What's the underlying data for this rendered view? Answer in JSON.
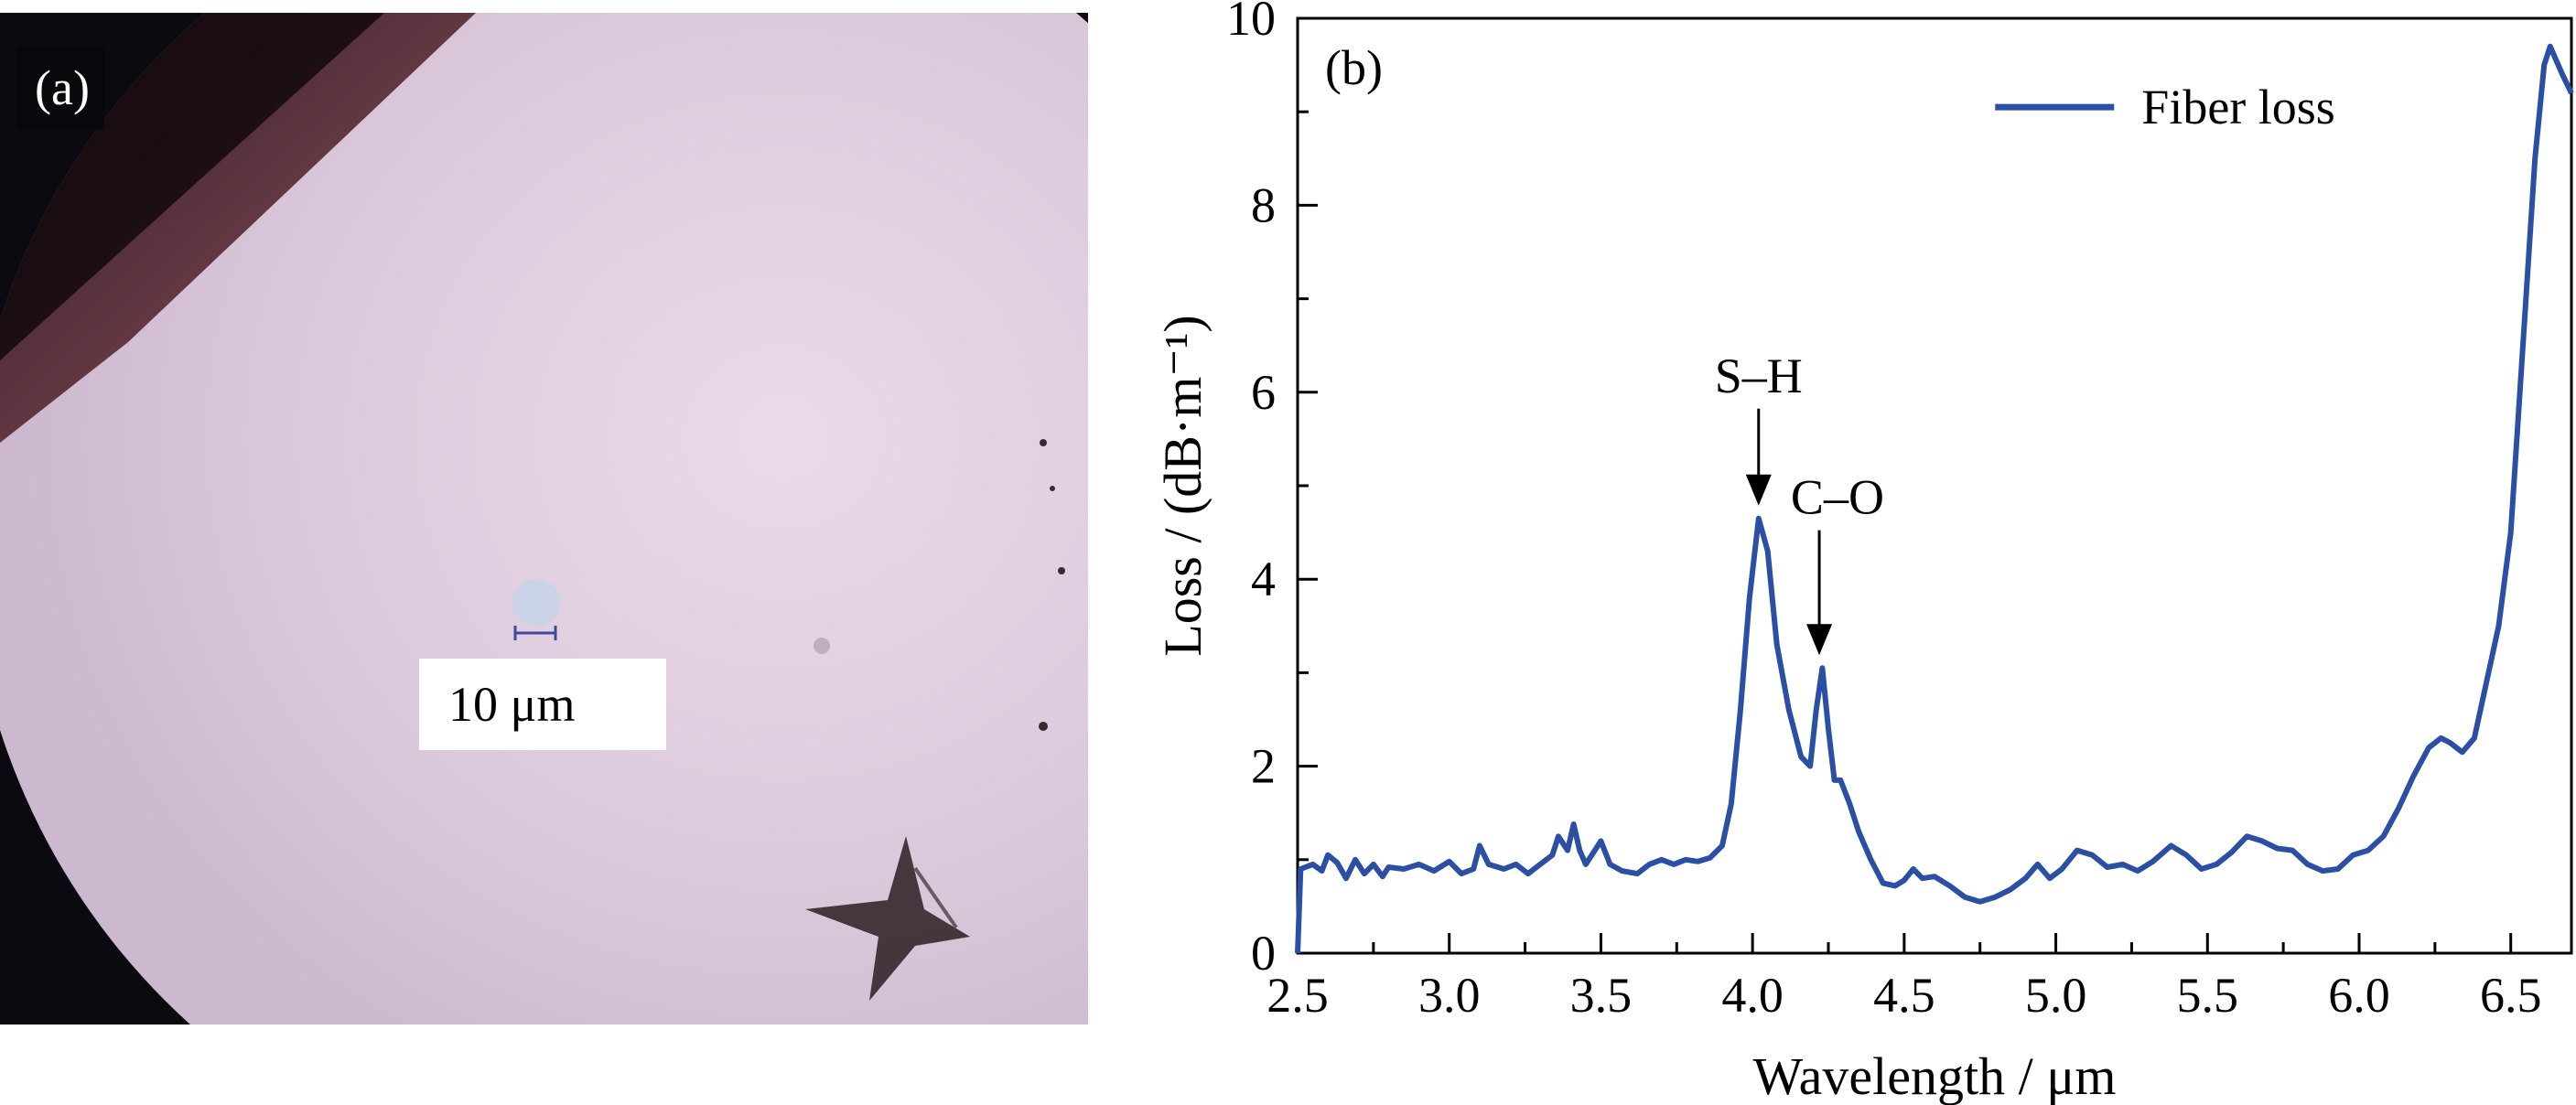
{
  "panel_a": {
    "label": "(a)",
    "scale_bar_text": "10 μm",
    "colors": {
      "field": "#d9c6d9",
      "shadow": "#0b0a10",
      "scale_bar": "#3b4a9a"
    }
  },
  "chart_data": {
    "type": "line",
    "panel_label": "(b)",
    "xlabel": "Wavelength / μm",
    "ylabel": "Loss / (dB·m⁻¹)",
    "xlim": [
      2.5,
      6.7
    ],
    "ylim": [
      0,
      10
    ],
    "xticks": [
      "2.5",
      "3.0",
      "3.5",
      "4.0",
      "4.5",
      "5.0",
      "5.5",
      "6.0",
      "6.5"
    ],
    "yticks": [
      "0",
      "2",
      "4",
      "6",
      "8",
      "10"
    ],
    "legend_position": "top-center",
    "grid": false,
    "series": [
      {
        "name": "Fiber loss",
        "color": "#2a4fa3",
        "points": [
          [
            2.5,
            0.0
          ],
          [
            2.51,
            0.9
          ],
          [
            2.55,
            0.95
          ],
          [
            2.58,
            0.88
          ],
          [
            2.6,
            1.05
          ],
          [
            2.63,
            0.97
          ],
          [
            2.66,
            0.8
          ],
          [
            2.69,
            1.0
          ],
          [
            2.72,
            0.85
          ],
          [
            2.75,
            0.95
          ],
          [
            2.78,
            0.82
          ],
          [
            2.8,
            0.92
          ],
          [
            2.85,
            0.9
          ],
          [
            2.9,
            0.95
          ],
          [
            2.95,
            0.88
          ],
          [
            3.0,
            0.98
          ],
          [
            3.04,
            0.85
          ],
          [
            3.08,
            0.9
          ],
          [
            3.1,
            1.15
          ],
          [
            3.13,
            0.95
          ],
          [
            3.18,
            0.9
          ],
          [
            3.22,
            0.95
          ],
          [
            3.26,
            0.85
          ],
          [
            3.3,
            0.95
          ],
          [
            3.34,
            1.05
          ],
          [
            3.36,
            1.25
          ],
          [
            3.39,
            1.1
          ],
          [
            3.41,
            1.38
          ],
          [
            3.43,
            1.1
          ],
          [
            3.45,
            0.95
          ],
          [
            3.48,
            1.1
          ],
          [
            3.5,
            1.2
          ],
          [
            3.53,
            0.95
          ],
          [
            3.57,
            0.88
          ],
          [
            3.62,
            0.85
          ],
          [
            3.66,
            0.95
          ],
          [
            3.7,
            1.0
          ],
          [
            3.74,
            0.95
          ],
          [
            3.78,
            1.0
          ],
          [
            3.82,
            0.98
          ],
          [
            3.86,
            1.02
          ],
          [
            3.9,
            1.15
          ],
          [
            3.93,
            1.6
          ],
          [
            3.96,
            2.6
          ],
          [
            3.99,
            3.8
          ],
          [
            4.02,
            4.65
          ],
          [
            4.05,
            4.3
          ],
          [
            4.08,
            3.3
          ],
          [
            4.12,
            2.6
          ],
          [
            4.16,
            2.1
          ],
          [
            4.19,
            2.0
          ],
          [
            4.21,
            2.6
          ],
          [
            4.23,
            3.05
          ],
          [
            4.25,
            2.4
          ],
          [
            4.27,
            1.85
          ],
          [
            4.29,
            1.85
          ],
          [
            4.32,
            1.6
          ],
          [
            4.35,
            1.3
          ],
          [
            4.39,
            1.0
          ],
          [
            4.43,
            0.75
          ],
          [
            4.47,
            0.72
          ],
          [
            4.5,
            0.78
          ],
          [
            4.53,
            0.9
          ],
          [
            4.56,
            0.8
          ],
          [
            4.6,
            0.82
          ],
          [
            4.65,
            0.72
          ],
          [
            4.7,
            0.6
          ],
          [
            4.75,
            0.55
          ],
          [
            4.8,
            0.6
          ],
          [
            4.85,
            0.68
          ],
          [
            4.9,
            0.8
          ],
          [
            4.94,
            0.95
          ],
          [
            4.98,
            0.8
          ],
          [
            5.02,
            0.9
          ],
          [
            5.07,
            1.1
          ],
          [
            5.12,
            1.05
          ],
          [
            5.17,
            0.92
          ],
          [
            5.22,
            0.95
          ],
          [
            5.27,
            0.88
          ],
          [
            5.32,
            0.98
          ],
          [
            5.38,
            1.15
          ],
          [
            5.43,
            1.05
          ],
          [
            5.48,
            0.9
          ],
          [
            5.53,
            0.95
          ],
          [
            5.58,
            1.08
          ],
          [
            5.63,
            1.25
          ],
          [
            5.68,
            1.2
          ],
          [
            5.73,
            1.12
          ],
          [
            5.78,
            1.1
          ],
          [
            5.83,
            0.95
          ],
          [
            5.88,
            0.88
          ],
          [
            5.93,
            0.9
          ],
          [
            5.98,
            1.05
          ],
          [
            6.03,
            1.1
          ],
          [
            6.08,
            1.25
          ],
          [
            6.13,
            1.55
          ],
          [
            6.18,
            1.9
          ],
          [
            6.23,
            2.2
          ],
          [
            6.27,
            2.3
          ],
          [
            6.3,
            2.25
          ],
          [
            6.34,
            2.15
          ],
          [
            6.38,
            2.3
          ],
          [
            6.42,
            2.9
          ],
          [
            6.46,
            3.5
          ],
          [
            6.5,
            4.5
          ],
          [
            6.54,
            6.5
          ],
          [
            6.58,
            8.5
          ],
          [
            6.61,
            9.5
          ],
          [
            6.63,
            9.7
          ],
          [
            6.65,
            9.55
          ],
          [
            6.67,
            9.4
          ],
          [
            6.7,
            9.2
          ]
        ]
      }
    ],
    "annotations": [
      {
        "text": "S–H",
        "x": 4.02,
        "y": 4.65,
        "label_x": 4.02,
        "label_y": 6.0
      },
      {
        "text": "C–O",
        "x": 4.22,
        "y": 3.05,
        "label_x": 4.28,
        "label_y": 4.7
      }
    ]
  }
}
